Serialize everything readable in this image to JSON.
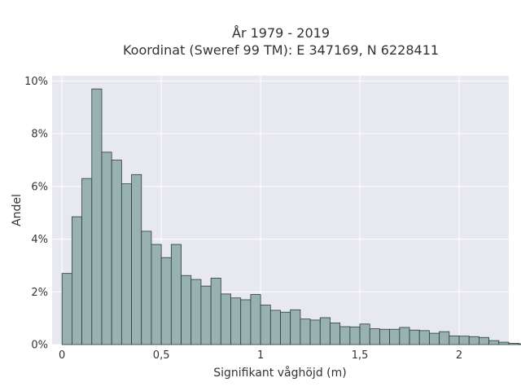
{
  "chart_data": {
    "type": "bar",
    "title_lines": [
      "År 1979 - 2019",
      "Koordinat (Sweref 99 TM): E 347169, N 6228411"
    ],
    "xlabel": "Signifikant våghöjd (m)",
    "ylabel": "Andel",
    "bin_width": 0.05,
    "bins_start": 0,
    "values": [
      2.7,
      4.85,
      6.3,
      9.7,
      7.3,
      7.0,
      6.1,
      6.45,
      4.3,
      3.8,
      3.3,
      3.8,
      2.62,
      2.47,
      2.22,
      2.52,
      1.92,
      1.77,
      1.7,
      1.9,
      1.5,
      1.3,
      1.23,
      1.32,
      0.97,
      0.93,
      1.02,
      0.82,
      0.68,
      0.67,
      0.78,
      0.6,
      0.58,
      0.58,
      0.65,
      0.55,
      0.53,
      0.43,
      0.49,
      0.33,
      0.32,
      0.3,
      0.27,
      0.15,
      0.09,
      0.05,
      0.03,
      0.03,
      0.02,
      0.02,
      0.01
    ],
    "xlim": [
      -0.05,
      2.25
    ],
    "ylim": [
      0,
      10.2
    ],
    "x_ticks": [
      0,
      0.5,
      1,
      1.5,
      2
    ],
    "x_tick_labels": [
      "0",
      "0,5",
      "1",
      "1,5",
      "2"
    ],
    "y_ticks": [
      0,
      2,
      4,
      6,
      8,
      10
    ],
    "y_tick_labels": [
      "0%",
      "2%",
      "4%",
      "6%",
      "8%",
      "10%"
    ],
    "grid": true,
    "colors": {
      "bar_fill": "#98b2b0",
      "bar_stroke": "#2e3b3a",
      "plot_bg": "#e8e8f0",
      "grid": "#ffffff",
      "text": "#333333"
    }
  }
}
